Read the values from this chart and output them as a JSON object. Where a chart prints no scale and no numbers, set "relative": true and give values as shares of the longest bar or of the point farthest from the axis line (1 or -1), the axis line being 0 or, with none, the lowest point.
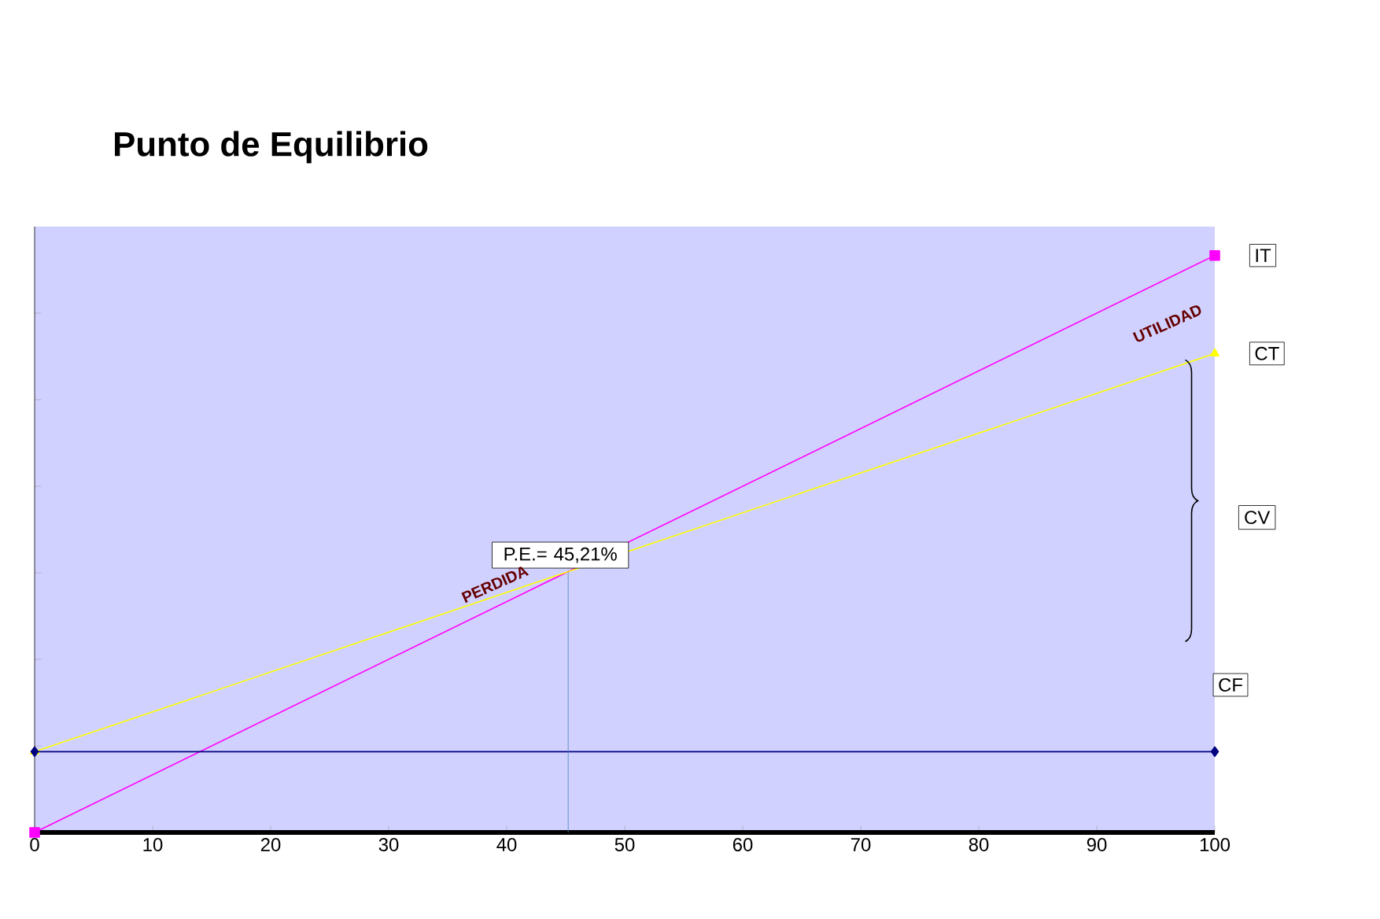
{
  "chart_data": {
    "type": "line",
    "title": "Punto de Equilibrio",
    "relative": true,
    "x": [
      0,
      100
    ],
    "xlim": [
      0,
      100
    ],
    "xticks": [
      0,
      10,
      20,
      30,
      40,
      50,
      60,
      70,
      80,
      90,
      100
    ],
    "series": [
      {
        "name": "IT",
        "color": "#ff00ff",
        "values": [
          0,
          1
        ],
        "marker": "square"
      },
      {
        "name": "CT",
        "color": "#ffff00",
        "values": [
          0.14,
          0.83
        ],
        "marker": "triangle"
      },
      {
        "name": "CF",
        "color": "#000080",
        "values": [
          0.14,
          0.14
        ],
        "marker": "diamond"
      }
    ],
    "ref_lines": [
      {
        "axis": "x",
        "value": 45.21,
        "label": "P.E.= 45,21%",
        "color": "#4f81bd"
      }
    ],
    "annotations": [
      "PERDIDA",
      "UTILIDAD",
      "CV"
    ]
  }
}
